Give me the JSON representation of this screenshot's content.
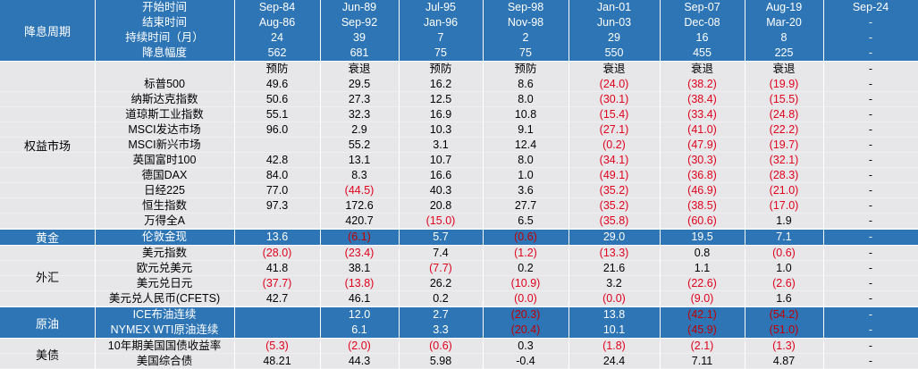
{
  "header": {
    "row_labels": [
      "开始时间",
      "结束时间",
      "持续时间（月）",
      "降息幅度"
    ],
    "group_label": "降息周期",
    "periods": [
      {
        "start": "Sep-84",
        "end": "Aug-86",
        "months": "24",
        "cut": "562"
      },
      {
        "start": "Jun-89",
        "end": "Sep-92",
        "months": "39",
        "cut": "681"
      },
      {
        "start": "Jul-95",
        "end": "Jan-96",
        "months": "7",
        "cut": "75"
      },
      {
        "start": "Sep-98",
        "end": "Nov-98",
        "months": "2",
        "cut": "75"
      },
      {
        "start": "Jan-01",
        "end": "Jun-03",
        "months": "29",
        "cut": "550"
      },
      {
        "start": "Sep-07",
        "end": "Dec-08",
        "months": "16",
        "cut": "455"
      },
      {
        "start": "Aug-19",
        "end": "Mar-20",
        "months": "8",
        "cut": "225"
      },
      {
        "start": "Sep-24",
        "end": "-",
        "months": "-",
        "cut": "-"
      }
    ]
  },
  "cycle_type": [
    "预防",
    "衰退",
    "预防",
    "预防",
    "衰退",
    "衰退",
    "衰退",
    "-"
  ],
  "groups": [
    {
      "label": "权益市场",
      "band": "gray",
      "rows": [
        {
          "name": "标普500",
          "values": [
            "49.6",
            "29.5",
            "16.2",
            "8.6",
            "(24.0)",
            "(38.2)",
            "(19.9)",
            "-"
          ]
        },
        {
          "name": "纳斯达克指数",
          "values": [
            "50.6",
            "27.3",
            "12.5",
            "8.0",
            "(30.1)",
            "(38.4)",
            "(15.5)",
            "-"
          ]
        },
        {
          "name": "道琼斯工业指数",
          "values": [
            "55.1",
            "32.3",
            "16.9",
            "10.8",
            "(15.4)",
            "(33.4)",
            "(24.8)",
            "-"
          ]
        },
        {
          "name": "MSCI发达市场",
          "values": [
            "96.0",
            "2.9",
            "10.3",
            "9.1",
            "(27.1)",
            "(41.0)",
            "(22.2)",
            "-"
          ]
        },
        {
          "name": "MSCI新兴市场",
          "values": [
            "",
            "55.2",
            "3.1",
            "12.4",
            "(0.2)",
            "(47.9)",
            "(19.7)",
            "-"
          ]
        },
        {
          "name": "英国富时100",
          "values": [
            "42.8",
            "13.1",
            "10.7",
            "8.0",
            "(34.1)",
            "(30.3)",
            "(32.1)",
            "-"
          ]
        },
        {
          "name": "德国DAX",
          "values": [
            "84.0",
            "8.3",
            "16.6",
            "1.0",
            "(49.1)",
            "(36.8)",
            "(28.3)",
            "-"
          ]
        },
        {
          "name": "日经225",
          "values": [
            "77.0",
            "(44.5)",
            "40.3",
            "3.6",
            "(35.2)",
            "(46.9)",
            "(21.0)",
            "-"
          ]
        },
        {
          "name": "恒生指数",
          "values": [
            "97.3",
            "172.6",
            "20.8",
            "27.7",
            "(35.2)",
            "(38.5)",
            "(17.0)",
            "-"
          ]
        },
        {
          "name": "万得全A",
          "values": [
            "",
            "420.7",
            "(15.0)",
            "6.5",
            "(35.8)",
            "(60.6)",
            "1.9",
            "-"
          ]
        }
      ]
    },
    {
      "label": "黄金",
      "band": "blue",
      "rows": [
        {
          "name": "伦敦金现",
          "values": [
            "13.6",
            "(6.1)",
            "5.7",
            "(0.6)",
            "29.0",
            "19.5",
            "7.1",
            "-"
          ]
        }
      ]
    },
    {
      "label": "外汇",
      "band": "gray",
      "rows": [
        {
          "name": "美元指数",
          "values": [
            "(28.0)",
            "(23.4)",
            "7.4",
            "(1.2)",
            "(13.3)",
            "0.8",
            "(0.6)",
            "-"
          ]
        },
        {
          "name": "欧元兑美元",
          "values": [
            "41.8",
            "38.1",
            "(7.7)",
            "0.2",
            "21.6",
            "1.1",
            "1.0",
            "-"
          ]
        },
        {
          "name": "美元兑日元",
          "values": [
            "(37.7)",
            "(13.8)",
            "26.2",
            "(10.9)",
            "3.2",
            "(22.6)",
            "(2.6)",
            "-"
          ]
        },
        {
          "name": "美元兑人民币(CFETS)",
          "values": [
            "42.7",
            "46.1",
            "0.2",
            "(0.0)",
            "(0.0)",
            "(9.0)",
            "1.6",
            "-"
          ]
        }
      ]
    },
    {
      "label": "原油",
      "band": "blue",
      "rows": [
        {
          "name": "ICE布油连续",
          "values": [
            "",
            "12.0",
            "2.7",
            "(20.3)",
            "13.8",
            "(42.1)",
            "(54.2)",
            "-"
          ]
        },
        {
          "name": "NYMEX WTI原油连续",
          "values": [
            "",
            "6.1",
            "3.3",
            "(20.4)",
            "10.1",
            "(45.9)",
            "(51.0)",
            "-"
          ]
        }
      ]
    },
    {
      "label": "美债",
      "band": "gray",
      "rows": [
        {
          "name": "10年期美国国债收益率",
          "values": [
            "(5.3)",
            "(2.0)",
            "(0.6)",
            "0.3",
            "(1.8)",
            "(2.1)",
            "(1.3)",
            "-"
          ]
        },
        {
          "name": "美国综合债",
          "values": [
            "48.21",
            "44.3",
            "5.98",
            "-0.4",
            "24.4",
            "7.11",
            "4.87",
            "-"
          ]
        }
      ]
    }
  ],
  "colors": {
    "header_blue": "#2e75b6",
    "body_gray": "#e7e7ea",
    "negative_red": "#e0001b",
    "white": "#ffffff"
  }
}
